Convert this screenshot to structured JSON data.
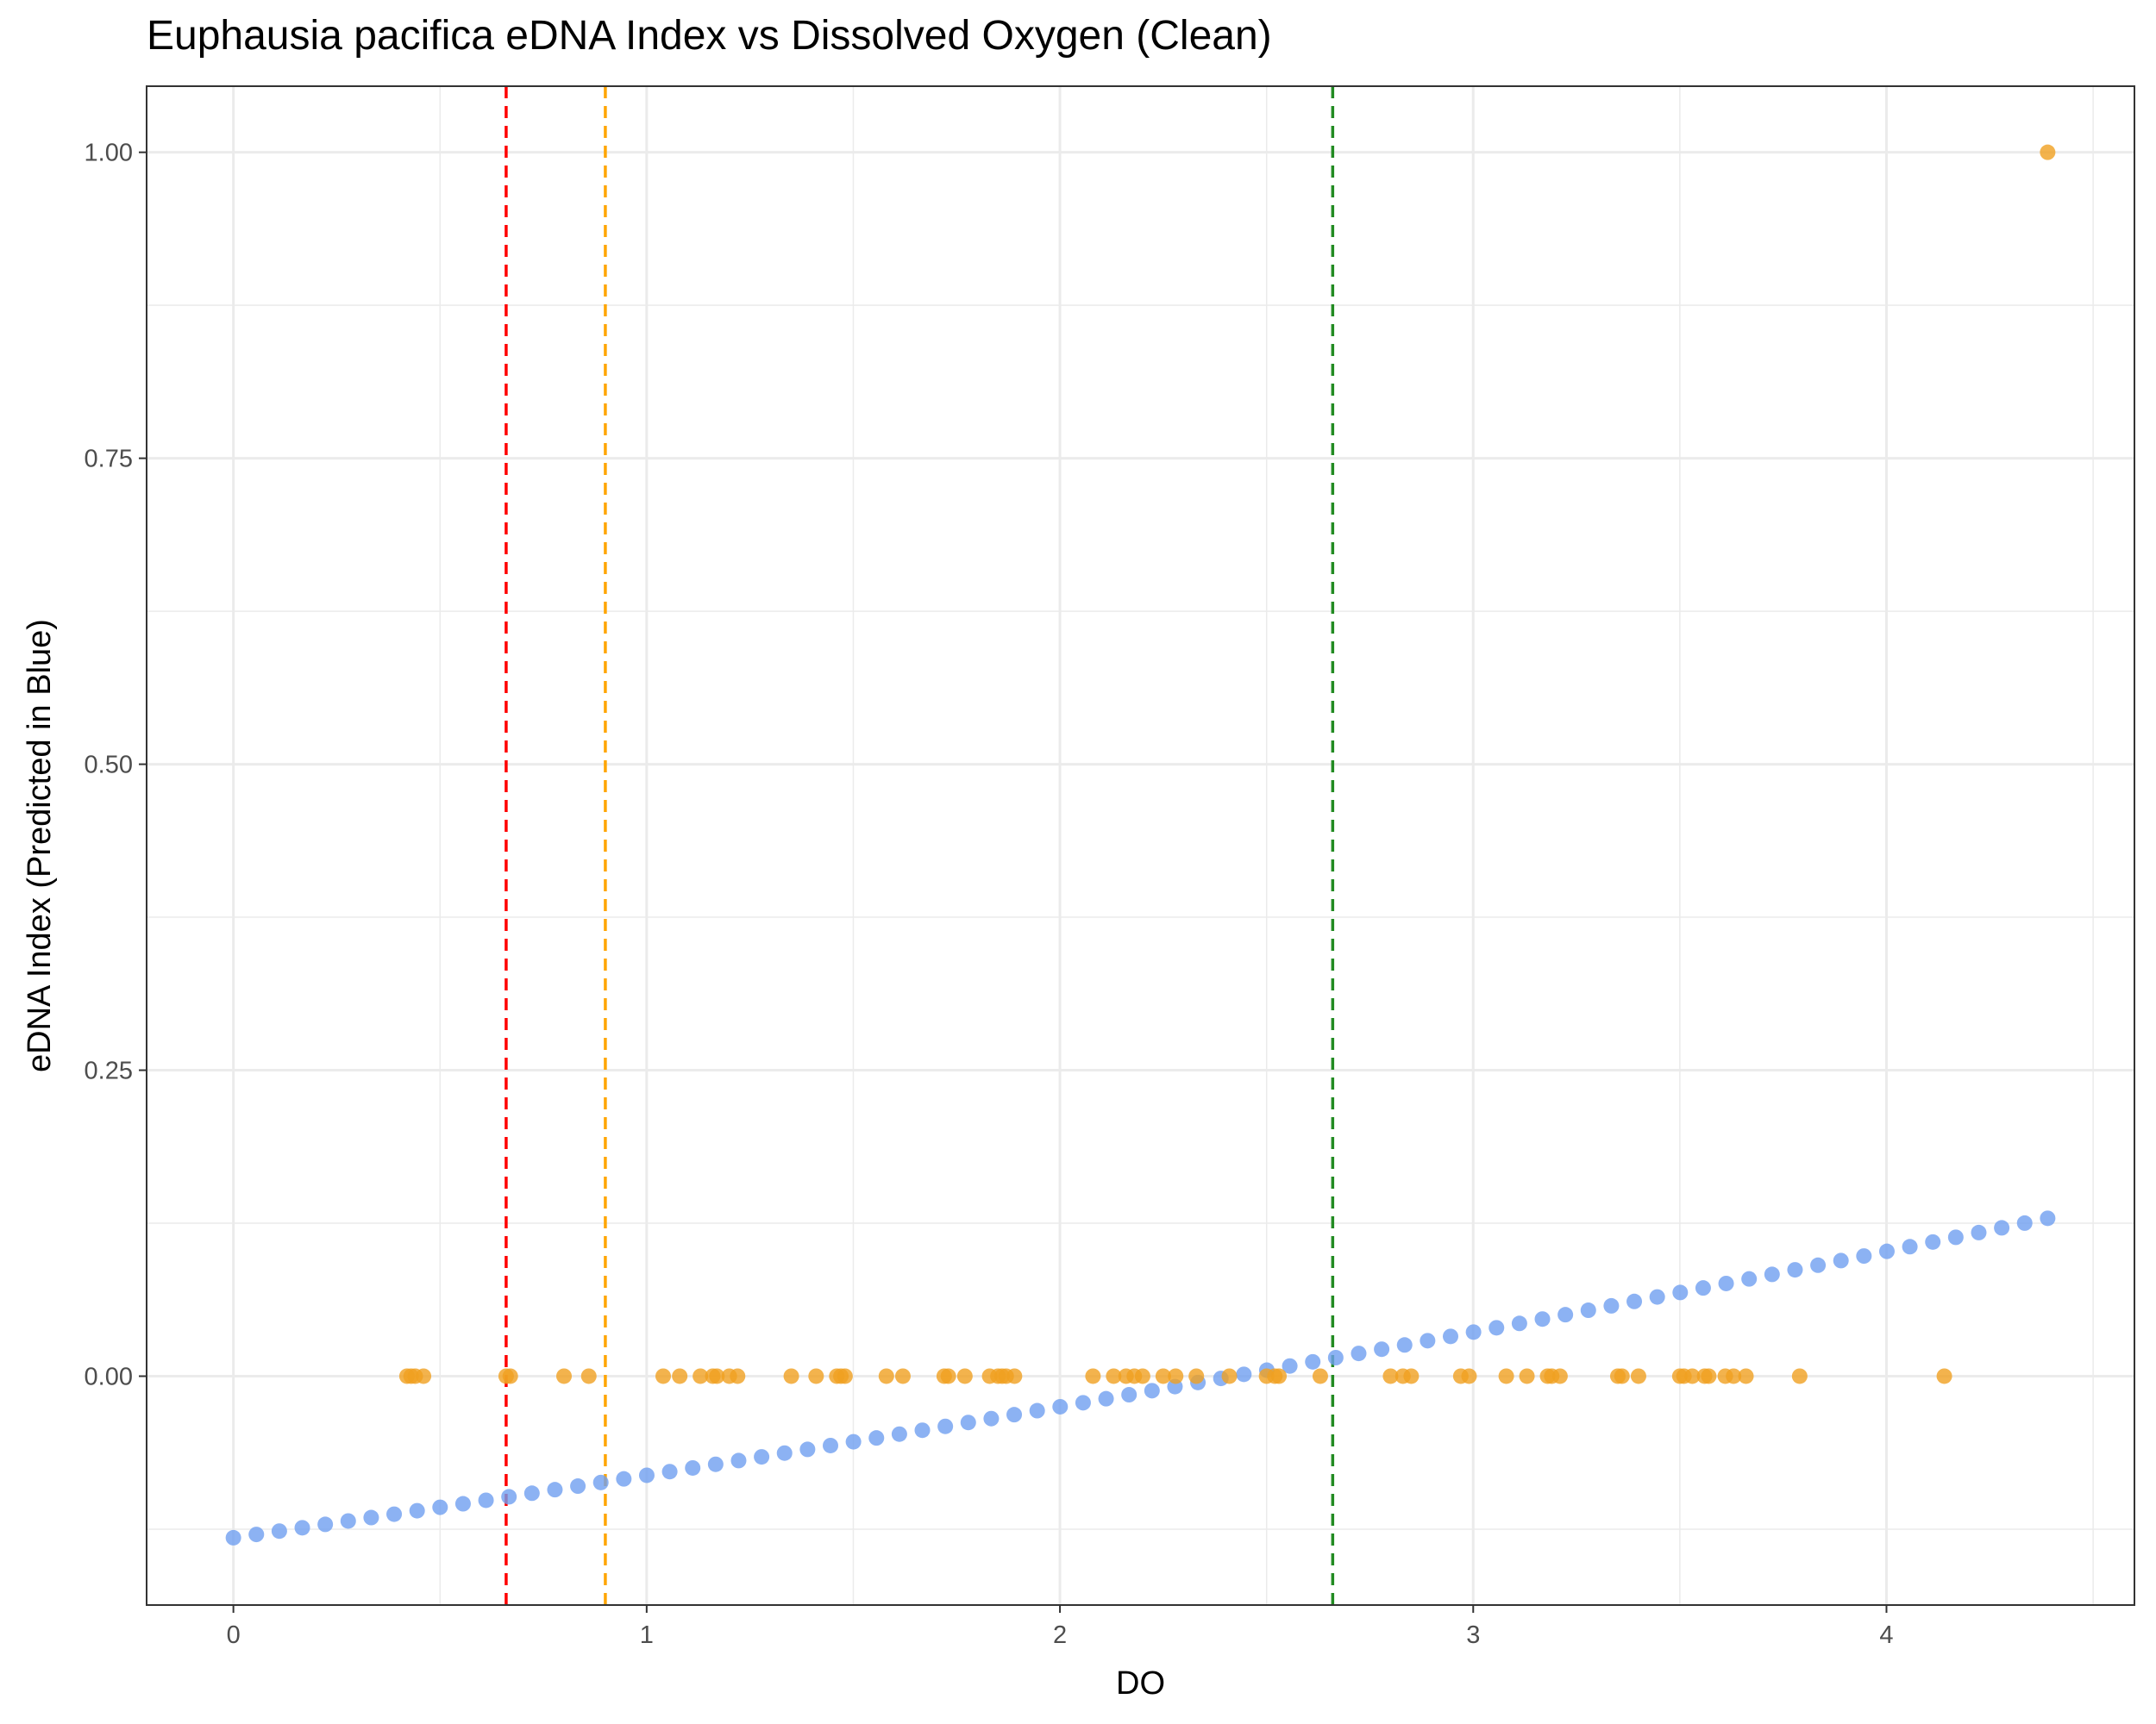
{
  "chart_data": {
    "type": "scatter",
    "title": "Euphausia pacifica eDNA Index vs Dissolved Oxygen (Clean)",
    "xlabel": "DO",
    "ylabel": "eDNA Index (Predicted in Blue)",
    "xlim": [
      -0.21,
      4.6
    ],
    "ylim": [
      -0.187,
      1.054
    ],
    "x_ticks": [
      0,
      1,
      2,
      3,
      4
    ],
    "x_tick_labels": [
      "0",
      "1",
      "2",
      "3",
      "4"
    ],
    "y_ticks": [
      0,
      0.25,
      0.5,
      0.75,
      1
    ],
    "y_tick_labels": [
      "0.00",
      "0.25",
      "0.50",
      "0.75",
      "1.00"
    ],
    "grid": true,
    "legend": "none",
    "colors": {
      "observed": "#f0a020",
      "predicted": "#6f9ff0",
      "vline_red": "#ff0000",
      "vline_orange": "#ffa500",
      "vline_green": "#228b22"
    },
    "series": [
      {
        "role": "observed",
        "x": [
          0.42,
          0.43,
          0.44,
          0.46,
          0.66,
          0.67,
          0.8,
          0.86,
          1.04,
          1.08,
          1.13,
          1.16,
          1.17,
          1.2,
          1.22,
          1.35,
          1.41,
          1.46,
          1.47,
          1.48,
          1.58,
          1.62,
          1.72,
          1.73,
          1.77,
          1.83,
          1.85,
          1.86,
          1.87,
          1.89,
          2.08,
          2.13,
          2.16,
          2.18,
          2.2,
          2.25,
          2.28,
          2.33,
          2.41,
          2.5,
          2.52,
          2.53,
          2.63,
          2.8,
          2.83,
          2.85,
          2.97,
          2.99,
          3.08,
          3.13,
          3.18,
          3.19,
          3.21,
          3.35,
          3.36,
          3.4,
          3.5,
          3.51,
          3.53,
          3.56,
          3.57,
          3.61,
          3.63,
          3.66,
          3.79,
          4.14,
          4.39
        ],
        "y": [
          0,
          0,
          0,
          0,
          0,
          0,
          0,
          0,
          0,
          0,
          0,
          0,
          0,
          0,
          0,
          0,
          0,
          0,
          0,
          0,
          0,
          0,
          0,
          0,
          0,
          0,
          0,
          0,
          0,
          0,
          0,
          0,
          0,
          0,
          0,
          0,
          0,
          0,
          0,
          0,
          0,
          0,
          0,
          0,
          0,
          0,
          0,
          0,
          0,
          0,
          0,
          0,
          0,
          0,
          0,
          0,
          0,
          0,
          0,
          0,
          0,
          0,
          0,
          0,
          0,
          0,
          1
        ]
      },
      {
        "role": "predicted",
        "x_start": 0,
        "x_end": 4.39,
        "n_points": 80,
        "y_start": -0.132,
        "y_end": 0.129,
        "curvature": 0.012
      }
    ],
    "vlines": [
      {
        "x": 0.66,
        "color": "#ff0000",
        "style": "dashed"
      },
      {
        "x": 0.9,
        "color": "#ffa500",
        "style": "dashed"
      },
      {
        "x": 2.66,
        "color": "#228b22",
        "style": "dashed"
      }
    ]
  }
}
